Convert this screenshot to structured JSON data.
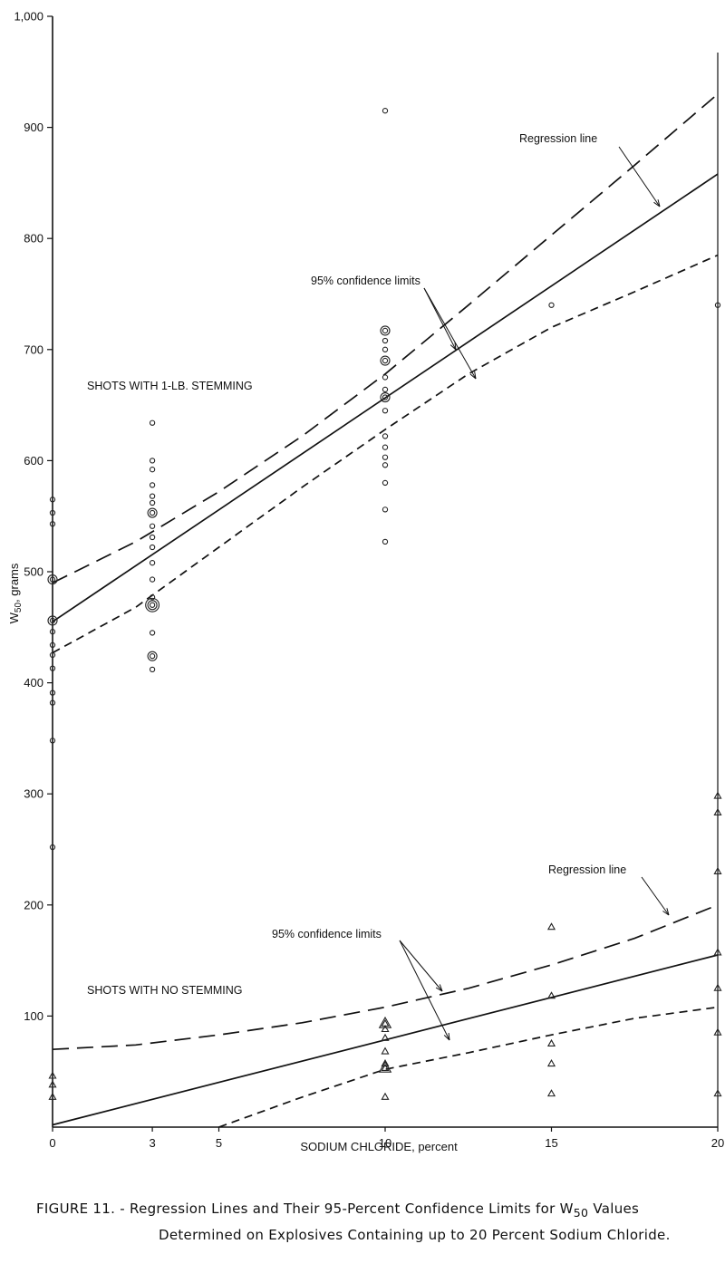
{
  "chart_data": {
    "type": "scatter",
    "xlabel": "SODIUM CHLORIDE, percent",
    "ylabel_main": "W",
    "ylabel_sub": "50",
    "ylabel_rest": ", grams",
    "xlim": [
      0,
      20
    ],
    "ylim": [
      0,
      1000
    ],
    "x_ticks": [
      0,
      3,
      5,
      10,
      15,
      20
    ],
    "y_ticks": [
      100,
      200,
      300,
      400,
      500,
      600,
      700,
      800,
      900,
      1000
    ],
    "y_tick_labels": [
      "100",
      "200",
      "300",
      "400",
      "500",
      "600",
      "700",
      "800",
      "900",
      "1,000"
    ],
    "grid": false,
    "groups": [
      {
        "label": "SHOTS WITH 1-LB. STEMMING",
        "marker": "circle",
        "points": [
          {
            "x": 0,
            "y": 565,
            "n": 1
          },
          {
            "x": 0,
            "y": 553,
            "n": 1
          },
          {
            "x": 0,
            "y": 543,
            "n": 1
          },
          {
            "x": 0,
            "y": 493,
            "n": 2
          },
          {
            "x": 0,
            "y": 456,
            "n": 2
          },
          {
            "x": 0,
            "y": 446,
            "n": 1
          },
          {
            "x": 0,
            "y": 434,
            "n": 1
          },
          {
            "x": 0,
            "y": 425,
            "n": 1
          },
          {
            "x": 0,
            "y": 413,
            "n": 1
          },
          {
            "x": 0,
            "y": 391,
            "n": 1
          },
          {
            "x": 0,
            "y": 382,
            "n": 1
          },
          {
            "x": 0,
            "y": 348,
            "n": 1
          },
          {
            "x": 0,
            "y": 252,
            "n": 1
          },
          {
            "x": 3,
            "y": 634,
            "n": 1
          },
          {
            "x": 3,
            "y": 600,
            "n": 1
          },
          {
            "x": 3,
            "y": 592,
            "n": 1
          },
          {
            "x": 3,
            "y": 578,
            "n": 1
          },
          {
            "x": 3,
            "y": 568,
            "n": 1
          },
          {
            "x": 3,
            "y": 562,
            "n": 1
          },
          {
            "x": 3,
            "y": 553,
            "n": 2
          },
          {
            "x": 3,
            "y": 541,
            "n": 1
          },
          {
            "x": 3,
            "y": 531,
            "n": 1
          },
          {
            "x": 3,
            "y": 522,
            "n": 1
          },
          {
            "x": 3,
            "y": 508,
            "n": 1
          },
          {
            "x": 3,
            "y": 493,
            "n": 1
          },
          {
            "x": 3,
            "y": 477,
            "n": 1
          },
          {
            "x": 3,
            "y": 470,
            "n": 3
          },
          {
            "x": 3,
            "y": 445,
            "n": 1
          },
          {
            "x": 3,
            "y": 424,
            "n": 2
          },
          {
            "x": 3,
            "y": 412,
            "n": 1
          },
          {
            "x": 10,
            "y": 915,
            "n": 1
          },
          {
            "x": 10,
            "y": 717,
            "n": 2
          },
          {
            "x": 10,
            "y": 708,
            "n": 1
          },
          {
            "x": 10,
            "y": 700,
            "n": 1
          },
          {
            "x": 10,
            "y": 690,
            "n": 2
          },
          {
            "x": 10,
            "y": 675,
            "n": 1
          },
          {
            "x": 10,
            "y": 664,
            "n": 1
          },
          {
            "x": 10,
            "y": 657,
            "n": 2
          },
          {
            "x": 10,
            "y": 645,
            "n": 1
          },
          {
            "x": 10,
            "y": 622,
            "n": 1
          },
          {
            "x": 10,
            "y": 612,
            "n": 1
          },
          {
            "x": 10,
            "y": 603,
            "n": 1
          },
          {
            "x": 10,
            "y": 596,
            "n": 1
          },
          {
            "x": 10,
            "y": 580,
            "n": 1
          },
          {
            "x": 10,
            "y": 556,
            "n": 1
          },
          {
            "x": 10,
            "y": 527,
            "n": 1
          },
          {
            "x": 15,
            "y": 740,
            "n": 1
          },
          {
            "x": 20,
            "y": 740,
            "n": 1
          }
        ],
        "series": [
          {
            "name": "Regression line",
            "style": "solid",
            "x": [
              0,
              20
            ],
            "y": [
              455,
              858
            ]
          },
          {
            "name": "95% confidence limits (upper)",
            "style": "long-dash",
            "x": [
              0,
              2.5,
              5,
              7.5,
              10,
              12.5,
              15,
              17.5,
              20
            ],
            "y": [
              490,
              527,
              572,
              622,
              678,
              740,
              803,
              866,
              930
            ]
          },
          {
            "name": "95% confidence limits (lower)",
            "style": "short-dash",
            "x": [
              0,
              2.5,
              5,
              7.5,
              10,
              12.5,
              15,
              17.5,
              20
            ],
            "y": [
              427,
              468,
              522,
              576,
              628,
              678,
              720,
              752,
              785
            ]
          }
        ],
        "annotations": [
          {
            "text": "Regression line"
          },
          {
            "text": "95% confidence limits"
          }
        ]
      },
      {
        "label": "SHOTS WITH NO STEMMING",
        "marker": "triangle",
        "points": [
          {
            "x": 0,
            "y": 46,
            "n": 1
          },
          {
            "x": 0,
            "y": 38,
            "n": 1
          },
          {
            "x": 0,
            "y": 27,
            "n": 1
          },
          {
            "x": 10,
            "y": 93,
            "n": 2
          },
          {
            "x": 10,
            "y": 88,
            "n": 1
          },
          {
            "x": 10,
            "y": 80,
            "n": 1
          },
          {
            "x": 10,
            "y": 68,
            "n": 1
          },
          {
            "x": 10,
            "y": 57,
            "n": 1
          },
          {
            "x": 10,
            "y": 53,
            "n": 2
          },
          {
            "x": 10,
            "y": 27,
            "n": 1
          },
          {
            "x": 15,
            "y": 180,
            "n": 1
          },
          {
            "x": 15,
            "y": 118,
            "n": 1
          },
          {
            "x": 15,
            "y": 75,
            "n": 1
          },
          {
            "x": 15,
            "y": 57,
            "n": 1
          },
          {
            "x": 15,
            "y": 30,
            "n": 1
          },
          {
            "x": 20,
            "y": 298,
            "n": 1
          },
          {
            "x": 20,
            "y": 283,
            "n": 1
          },
          {
            "x": 20,
            "y": 230,
            "n": 1
          },
          {
            "x": 20,
            "y": 157,
            "n": 1
          },
          {
            "x": 20,
            "y": 125,
            "n": 1
          },
          {
            "x": 20,
            "y": 85,
            "n": 1
          },
          {
            "x": 20,
            "y": 30,
            "n": 1
          }
        ],
        "series": [
          {
            "name": "Regression line",
            "style": "solid",
            "x": [
              0,
              20
            ],
            "y": [
              2,
              155
            ]
          },
          {
            "name": "95% confidence limits (upper)",
            "style": "long-dash",
            "x": [
              0,
              2.5,
              5,
              7.5,
              10,
              12.5,
              15,
              17.5,
              20
            ],
            "y": [
              70,
              74,
              83,
              94,
              108,
              125,
              146,
              170,
              200
            ]
          },
          {
            "name": "95% confidence limits (lower)",
            "style": "short-dash",
            "x": [
              5,
              7.5,
              10,
              12.5,
              15,
              17.5,
              20
            ],
            "y": [
              0,
              27,
              52,
              67,
              83,
              98,
              108
            ]
          }
        ],
        "annotations": [
          {
            "text": "Regression line"
          },
          {
            "text": "95% confidence limits"
          }
        ]
      }
    ]
  },
  "caption": {
    "line1": "FIGURE 11. - Regression Lines and Their 95-Percent Confidence Limits for W",
    "line1_sub": "50",
    "line1_end": " Values",
    "line2": "Determined on Explosives Containing up to 20 Percent Sodium Chloride."
  }
}
